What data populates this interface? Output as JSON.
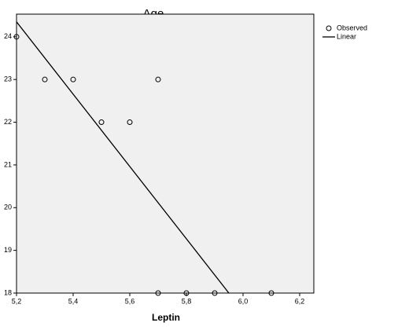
{
  "chart_data": {
    "type": "scatter",
    "title": "Age",
    "x_label": "Leptin",
    "xlim": [
      5.2,
      6.25
    ],
    "ylim": [
      18,
      24.53
    ],
    "xticks": [
      {
        "value": 5.2,
        "label": "5,2"
      },
      {
        "value": 5.4,
        "label": "5,4"
      },
      {
        "value": 5.6,
        "label": "5,6"
      },
      {
        "value": 5.8,
        "label": "5,8"
      },
      {
        "value": 6.0,
        "label": "6,0"
      },
      {
        "value": 6.2,
        "label": "6,2"
      }
    ],
    "yticks": [
      18,
      19,
      20,
      21,
      22,
      23,
      24
    ],
    "series": [
      {
        "name": "Observed",
        "type": "scatter",
        "color": "#000000",
        "x": [
          5.2,
          5.3,
          5.4,
          5.5,
          5.6,
          5.7,
          5.7,
          5.8,
          5.9,
          6.1
        ],
        "values": [
          24,
          23,
          23,
          22,
          22,
          23,
          18,
          18,
          18,
          18
        ]
      },
      {
        "name": "Linear",
        "type": "line",
        "color": "#000000",
        "x": [
          5.2,
          5.95
        ],
        "values": [
          24.35,
          18
        ]
      }
    ]
  }
}
